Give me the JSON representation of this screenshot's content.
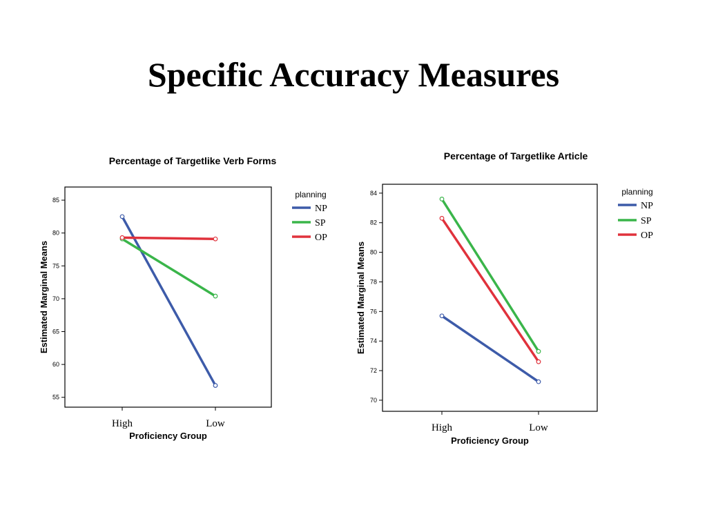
{
  "slide": {
    "title": "Specific Accuracy Measures"
  },
  "chart_data": [
    {
      "type": "line",
      "title": "Percentage of Targetlike Verb Forms",
      "xlabel": "Proficiency Group",
      "ylabel": "Estimated Marginal Means",
      "categories": [
        "High",
        "Low"
      ],
      "ylim": [
        53.5,
        87
      ],
      "yticks": [
        55,
        60,
        65,
        70,
        75,
        80,
        85
      ],
      "grid": false,
      "legend_title": "planning",
      "legend_position": "right",
      "series": [
        {
          "name": "NP",
          "values": [
            82.5,
            56.8
          ],
          "color": "#3d5ba9"
        },
        {
          "name": "SP",
          "values": [
            79.1,
            70.4
          ],
          "color": "#3ab54a"
        },
        {
          "name": "OP",
          "values": [
            79.3,
            79.1
          ],
          "color": "#e0323c"
        }
      ]
    },
    {
      "type": "line",
      "title": "Percentage of Targetlike Article",
      "xlabel": "Proficiency Group",
      "ylabel": "Estimated Marginal Means",
      "categories": [
        "High",
        "Low"
      ],
      "ylim": [
        69.25,
        84.6
      ],
      "yticks": [
        70,
        72,
        74,
        76,
        78,
        80,
        82,
        84
      ],
      "grid": false,
      "legend_title": "planning",
      "legend_position": "right",
      "series": [
        {
          "name": "NP",
          "values": [
            75.7,
            71.25
          ],
          "color": "#3d5ba9"
        },
        {
          "name": "SP",
          "values": [
            83.6,
            73.3
          ],
          "color": "#3ab54a"
        },
        {
          "name": "OP",
          "values": [
            82.3,
            72.6
          ],
          "color": "#e0323c"
        }
      ]
    }
  ]
}
